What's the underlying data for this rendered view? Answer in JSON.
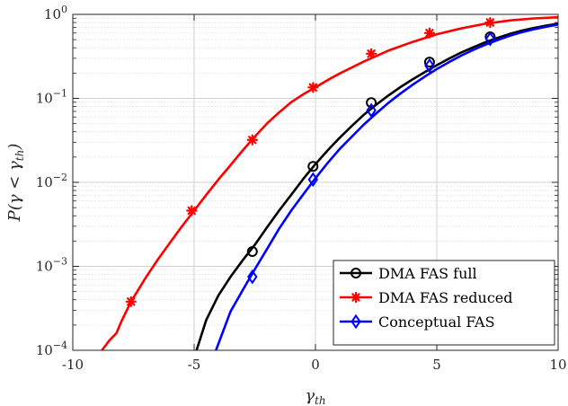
{
  "chart_data": {
    "type": "line",
    "xlabel": "γ_th",
    "ylabel": "P(γ < γ_th)",
    "xlim": [
      -10,
      10
    ],
    "ylim": [
      0.0001,
      1
    ],
    "yscale": "log",
    "grid": true,
    "legend_position": "bottom-right",
    "x_ticks": [
      -10,
      -5,
      0,
      5,
      10
    ],
    "x_tick_labels": [
      "-10",
      "-5",
      "0",
      "5",
      "10"
    ],
    "y_ticks": [
      0.0001,
      0.001,
      0.01,
      0.1,
      1
    ],
    "y_tick_labels": [
      {
        "base": "10",
        "exp": "−4"
      },
      {
        "base": "10",
        "exp": "−3"
      },
      {
        "base": "10",
        "exp": "−2"
      },
      {
        "base": "10",
        "exp": "−1"
      },
      {
        "base": "10",
        "exp": "0"
      }
    ],
    "series": [
      {
        "name": "DMA FAS full",
        "color": "#000000",
        "marker": "circle",
        "x": [
          -4.9,
          -4.5,
          -4,
          -3.5,
          -3,
          -2.5,
          -2,
          -1.5,
          -1,
          -0.5,
          0,
          0.5,
          1,
          1.5,
          2,
          2.5,
          3,
          3.5,
          4,
          4.5,
          5,
          5.5,
          6,
          6.5,
          7,
          7.5,
          8,
          8.5,
          9,
          9.5,
          10
        ],
        "y": [
          0.0001,
          0.00023,
          0.00045,
          0.00075,
          0.00118,
          0.0018,
          0.0029,
          0.0046,
          0.0071,
          0.011,
          0.0165,
          0.024,
          0.034,
          0.047,
          0.064,
          0.084,
          0.108,
          0.136,
          0.168,
          0.205,
          0.248,
          0.297,
          0.35,
          0.405,
          0.465,
          0.525,
          0.585,
          0.64,
          0.69,
          0.735,
          0.775
        ],
        "markers_x": [
          -2.6,
          -0.1,
          2.3,
          4.7,
          7.2
        ],
        "markers_y": [
          0.0015,
          0.0155,
          0.089,
          0.27,
          0.54
        ]
      },
      {
        "name": "DMA FAS reduced",
        "color": "#ff0000",
        "marker": "asterisk",
        "x": [
          -8.8,
          -8.5,
          -8.2,
          -8,
          -7.6,
          -7,
          -6.5,
          -6,
          -5.5,
          -5,
          -4.5,
          -4,
          -3.5,
          -3,
          -2.5,
          -2,
          -1.5,
          -1,
          -0.5,
          0,
          0.5,
          1,
          2,
          3,
          4,
          5,
          6,
          7,
          8,
          9,
          10
        ],
        "y": [
          0.0001,
          0.00013,
          0.00016,
          0.00022,
          0.00038,
          0.00073,
          0.0012,
          0.0019,
          0.003,
          0.0046,
          0.0071,
          0.0108,
          0.016,
          0.024,
          0.035,
          0.05,
          0.068,
          0.09,
          0.112,
          0.135,
          0.165,
          0.198,
          0.275,
          0.37,
          0.47,
          0.58,
          0.68,
          0.775,
          0.845,
          0.895,
          0.925
        ],
        "markers_x": [
          -7.6,
          -5.1,
          -2.6,
          -0.1,
          2.3,
          4.7,
          7.2
        ],
        "markers_y": [
          0.00038,
          0.0046,
          0.032,
          0.135,
          0.34,
          0.6,
          0.8
        ]
      },
      {
        "name": "Conceptual FAS",
        "color": "#0000ff",
        "marker": "diamond",
        "x": [
          -4.1,
          -3.5,
          -3,
          -2.5,
          -2,
          -1.5,
          -1,
          -0.5,
          0,
          0.5,
          1,
          1.5,
          2,
          2.5,
          3,
          3.5,
          4,
          4.5,
          5,
          5.5,
          6,
          6.5,
          7,
          7.5,
          8,
          8.5,
          9,
          9.5,
          10
        ],
        "y": [
          0.0001,
          0.00029,
          0.00052,
          0.00092,
          0.0016,
          0.0028,
          0.0046,
          0.0072,
          0.0112,
          0.017,
          0.025,
          0.035,
          0.049,
          0.066,
          0.088,
          0.114,
          0.145,
          0.181,
          0.223,
          0.27,
          0.322,
          0.377,
          0.435,
          0.495,
          0.555,
          0.612,
          0.665,
          0.712,
          0.755
        ],
        "markers_x": [
          -2.6,
          -0.1,
          2.3,
          4.7,
          7.2
        ],
        "markers_y": [
          0.00075,
          0.0108,
          0.072,
          0.245,
          0.51
        ]
      }
    ]
  }
}
